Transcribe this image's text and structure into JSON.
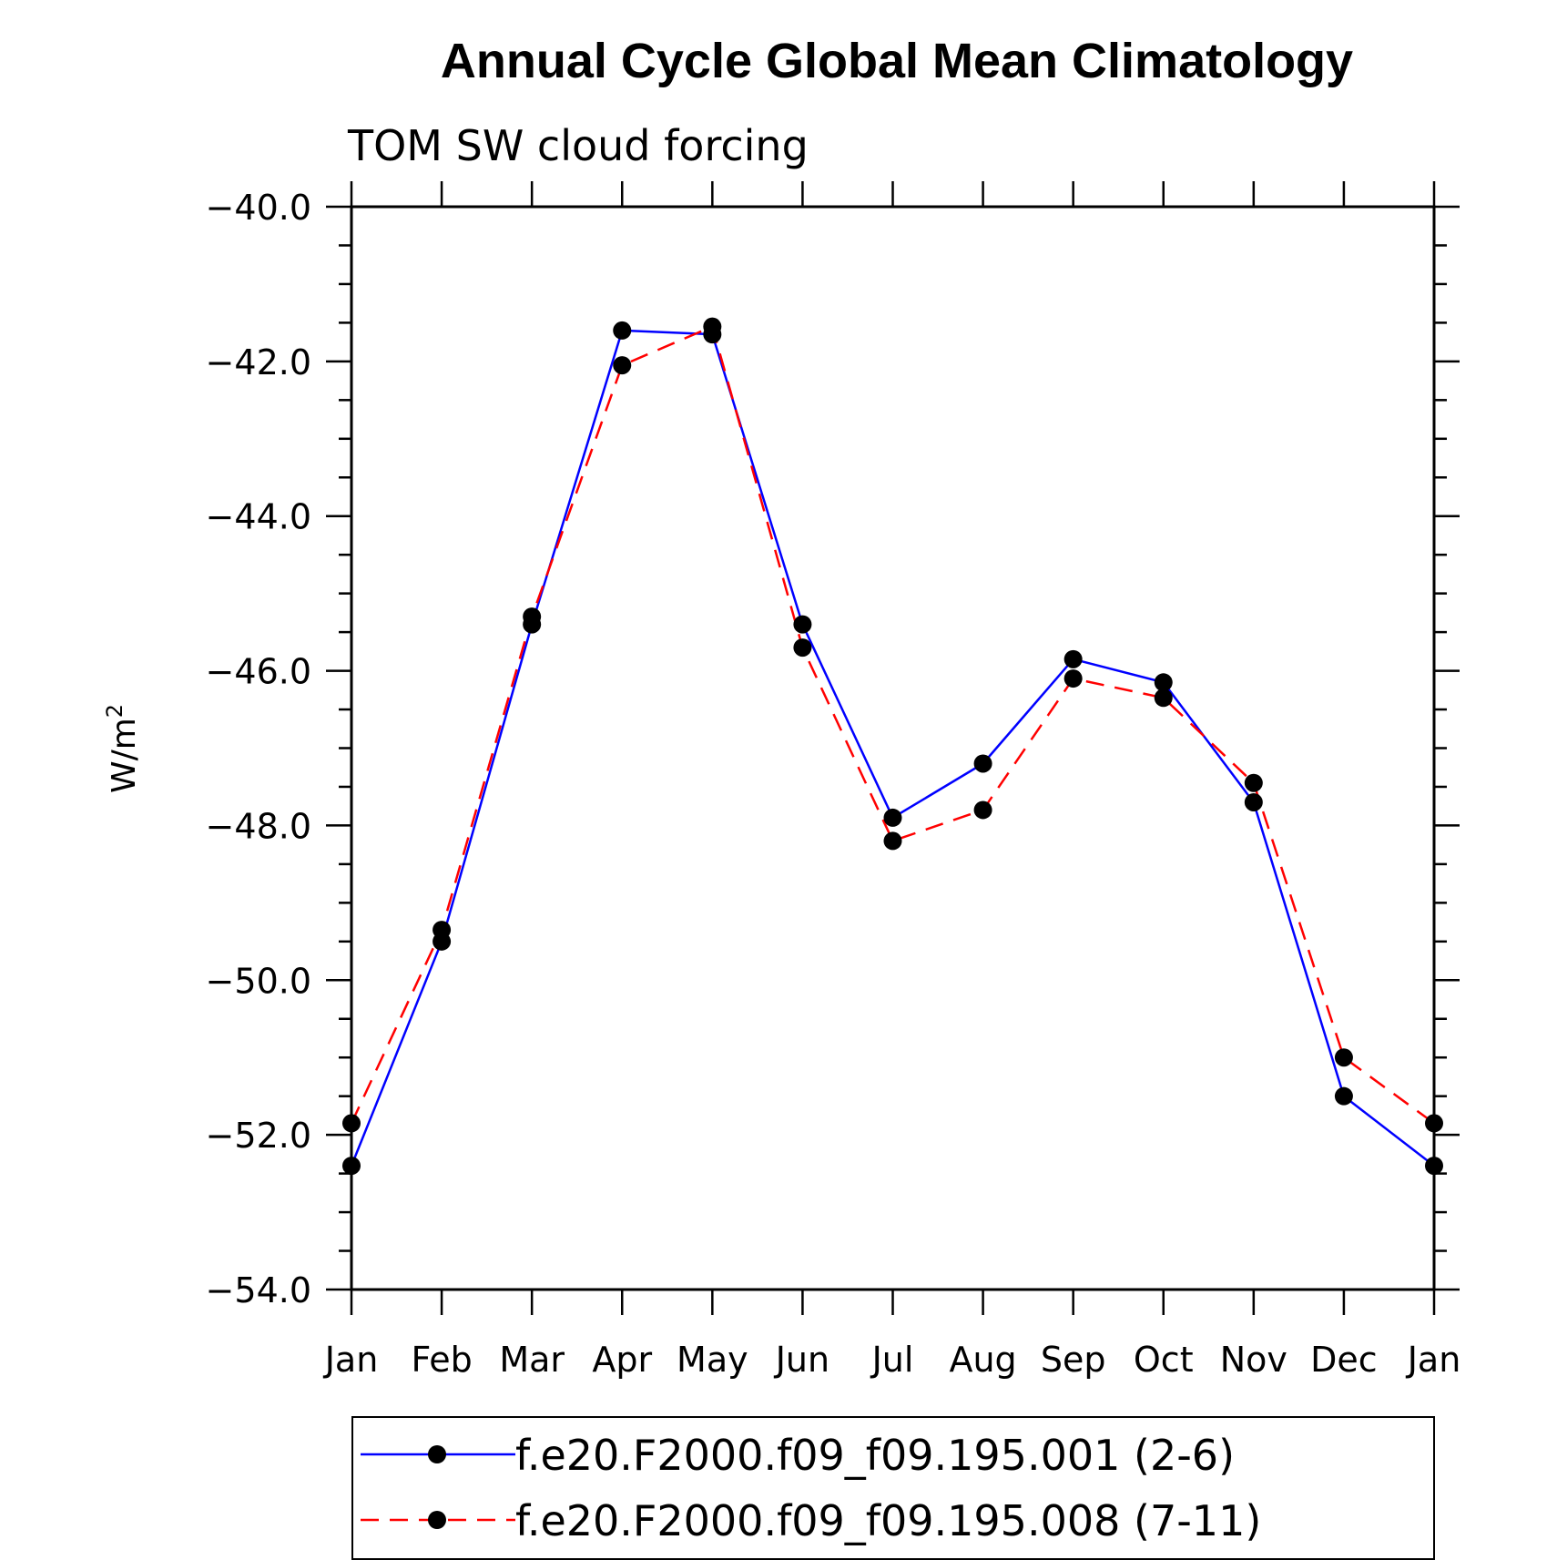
{
  "chart_data": {
    "type": "line",
    "title": "Annual Cycle Global Mean Climatology",
    "subtitle": "TOM SW cloud forcing",
    "ylabel": "W/m",
    "ylabel_sup": "2",
    "xlabel": "",
    "ylim": [
      -54.0,
      -40.0
    ],
    "yticks": [
      "-40.0",
      "-42.0",
      "-44.0",
      "-46.0",
      "-48.0",
      "-50.0",
      "-52.0",
      "-54.0"
    ],
    "categories": [
      "Jan",
      "Feb",
      "Mar",
      "Apr",
      "May",
      "Jun",
      "Jul",
      "Aug",
      "Sep",
      "Oct",
      "Nov",
      "Dec",
      "Jan"
    ],
    "grid": false,
    "legend_position": "bottom",
    "series": [
      {
        "name": "f.e20.F2000.f09_f09.195.001 (2-6)",
        "color": "#0000ff",
        "style": "solid",
        "values": [
          -52.4,
          -49.5,
          -45.4,
          -41.6,
          -41.65,
          -45.4,
          -47.9,
          -47.2,
          -45.85,
          -46.15,
          -47.7,
          -51.5,
          -52.4
        ]
      },
      {
        "name": "f.e20.F2000.f09_f09.195.008 (7-11)",
        "color": "#ff0000",
        "style": "dashed",
        "values": [
          -51.85,
          -49.35,
          -45.3,
          -42.05,
          -41.55,
          -45.7,
          -48.2,
          -47.8,
          -46.1,
          -46.35,
          -47.45,
          -51.0,
          -51.85
        ]
      }
    ]
  }
}
